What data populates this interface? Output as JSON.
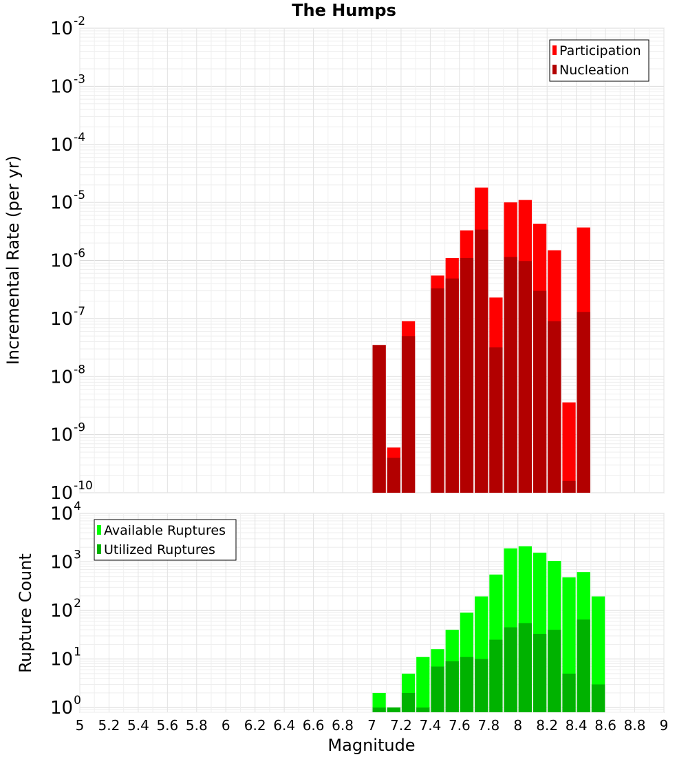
{
  "chart_data": {
    "title": "The Humps",
    "xlabel": "Magnitude",
    "x_ticks": [
      "5",
      "5.2",
      "5.4",
      "5.6",
      "5.8",
      "6",
      "6.2",
      "6.4",
      "6.6",
      "6.8",
      "7",
      "7.2",
      "7.4",
      "7.6",
      "7.8",
      "8",
      "8.2",
      "8.4",
      "8.6",
      "8.8",
      "9"
    ],
    "xlim": [
      5,
      9
    ],
    "grid": true,
    "panels": [
      {
        "type": "bar",
        "ylabel": "Incremental Rate (per yr)",
        "yscale": "log",
        "ylim": [
          1e-10,
          0.01
        ],
        "y_ticks": [
          {
            "base": "10",
            "exp": "-10"
          },
          {
            "base": "10",
            "exp": "-9"
          },
          {
            "base": "10",
            "exp": "-8"
          },
          {
            "base": "10",
            "exp": "-7"
          },
          {
            "base": "10",
            "exp": "-6"
          },
          {
            "base": "10",
            "exp": "-5"
          },
          {
            "base": "10",
            "exp": "-4"
          },
          {
            "base": "10",
            "exp": "-3"
          },
          {
            "base": "10",
            "exp": "-2"
          }
        ],
        "legend_position": "top-right",
        "x": [
          7.05,
          7.15,
          7.25,
          7.35,
          7.45,
          7.55,
          7.65,
          7.75,
          7.85,
          7.95,
          8.05,
          8.15,
          8.25,
          8.35,
          8.45
        ],
        "series": [
          {
            "name": "Participation",
            "color": "#ff0000",
            "values": [
              3.5e-08,
              6e-10,
              9e-08,
              null,
              5.5e-07,
              1.1e-06,
              3.3e-06,
              1.8e-05,
              2.3e-07,
              1e-05,
              1.1e-05,
              4.3e-06,
              1.5e-06,
              3.6e-09,
              3.7e-06
            ]
          },
          {
            "name": "Nucleation",
            "color": "#b20000",
            "values": [
              3.5e-08,
              4e-10,
              5e-08,
              null,
              3.3e-07,
              4.9e-07,
              1.1e-06,
              3.4e-06,
              3.2e-08,
              1.15e-06,
              9.8e-07,
              3e-07,
              9e-08,
              1.6e-10,
              1.3e-07
            ]
          }
        ]
      },
      {
        "type": "bar",
        "ylabel": "Rupture Count",
        "yscale": "log",
        "ylim": [
          0.8,
          10000.0
        ],
        "y_ticks": [
          {
            "base": "10",
            "exp": "0"
          },
          {
            "base": "10",
            "exp": "1"
          },
          {
            "base": "10",
            "exp": "2"
          },
          {
            "base": "10",
            "exp": "3"
          },
          {
            "base": "10",
            "exp": "4"
          }
        ],
        "legend_position": "top-left",
        "x": [
          7.05,
          7.15,
          7.25,
          7.35,
          7.45,
          7.55,
          7.65,
          7.75,
          7.85,
          7.95,
          8.05,
          8.15,
          8.25,
          8.35,
          8.45,
          8.55
        ],
        "series": [
          {
            "name": "Available Ruptures",
            "color": "#00ff00",
            "values": [
              2,
              1,
              5,
              11,
              16,
              40,
              90,
              195,
              550,
              1900,
              2100,
              1550,
              1050,
              480,
              620,
              195
            ]
          },
          {
            "name": "Utilized Ruptures",
            "color": "#00b200",
            "values": [
              1,
              1,
              2,
              1,
              7,
              9,
              11,
              10,
              25,
              45,
              55,
              33,
              40,
              5,
              65,
              3
            ]
          }
        ]
      }
    ]
  }
}
